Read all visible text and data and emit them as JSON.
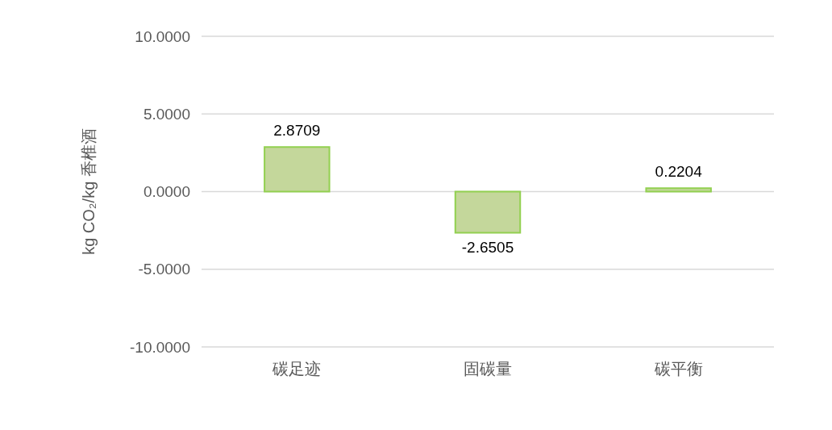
{
  "chart_data": {
    "type": "bar",
    "ylabel": "kg CO₂/kg 香椎酒",
    "categories": [
      "碳足迹",
      "固碳量",
      "碳平衡"
    ],
    "values": [
      2.8709,
      -2.6505,
      0.2204
    ],
    "color": "#c4d79b",
    "ylim": [
      -10,
      10
    ],
    "yticks": [
      {
        "value": -10,
        "label": "-10.0000"
      },
      {
        "value": -5,
        "label": "-5.0000"
      },
      {
        "value": 0,
        "label": "0.0000"
      },
      {
        "value": 5,
        "label": "5.0000"
      },
      {
        "value": 10,
        "label": "10.0000"
      }
    ],
    "grid": "y",
    "data_labels": true
  }
}
